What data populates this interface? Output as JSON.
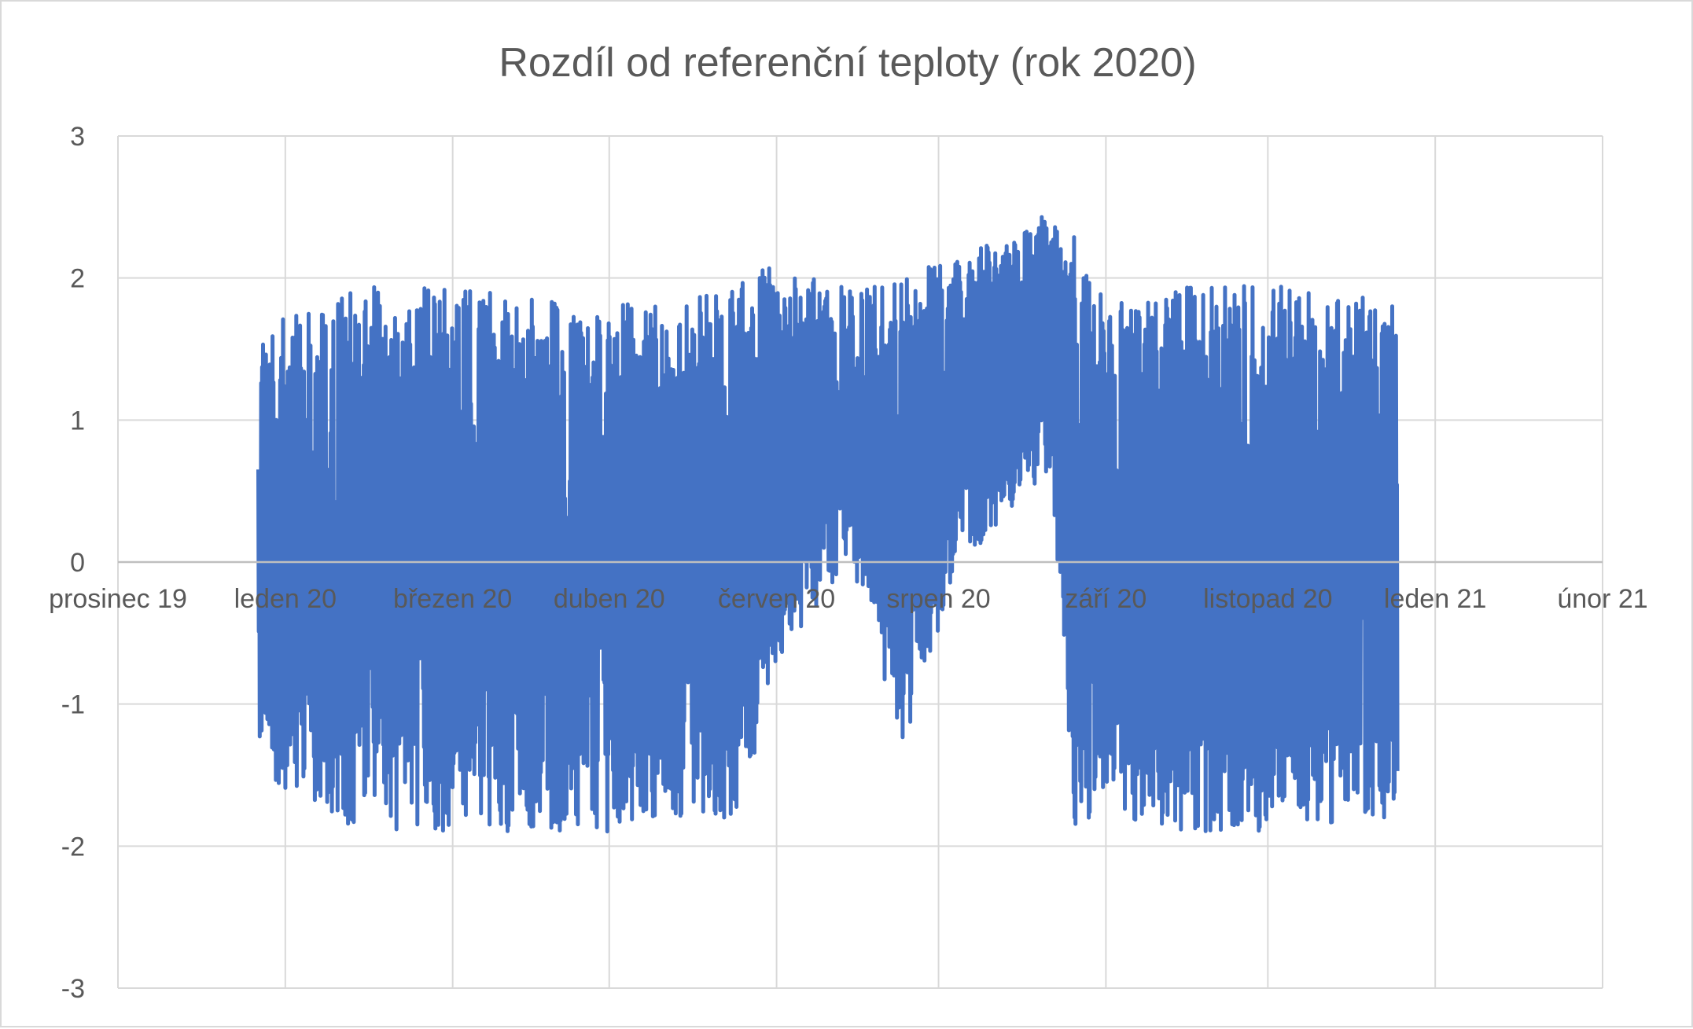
{
  "chart_data": {
    "type": "line",
    "title": "Rozdíl od referenční teploty (rok 2020)",
    "xlabel": "",
    "ylabel": "",
    "ylim": [
      -3,
      3
    ],
    "y_ticks": [
      "3",
      "2",
      "1",
      "0",
      "-1",
      "-2",
      "-3"
    ],
    "x_ticks": [
      {
        "label": "prosinec 19",
        "date": "2019-12-01"
      },
      {
        "label": "leden 20",
        "date": "2020-01-01"
      },
      {
        "label": "březen 20",
        "date": "2020-02-01"
      },
      {
        "label": "duben 20",
        "date": "2020-03-01"
      },
      {
        "label": "červen 20",
        "date": "2020-04-01"
      },
      {
        "label": "srpen 20",
        "date": "2020-05-01"
      },
      {
        "label": "září 20",
        "date": "2020-06-01"
      },
      {
        "label": "listopad 20",
        "date": "2020-07-01"
      },
      {
        "label": "leden 21",
        "date": "2020-08-01"
      },
      {
        "label": "únor 21",
        "date": "2020-09-01"
      }
    ],
    "xlim": [
      "2019-12-01",
      "2020-09-01"
    ],
    "grid": true,
    "legend": "none",
    "series_color": "#4472C4",
    "series": [
      {
        "x_start": "2019-12-27",
        "x_end": "2020-07-25",
        "envelope_x": [
          "2019-12-27",
          "2020-01-15",
          "2020-02-15",
          "2020-03-05",
          "2020-03-15",
          "2020-03-25",
          "2020-04-01",
          "2020-04-15",
          "2020-04-25",
          "2020-05-05",
          "2020-05-15",
          "2020-05-22",
          "2020-05-26",
          "2020-06-01",
          "2020-06-15",
          "2020-07-01",
          "2020-07-25"
        ],
        "envelope_max": [
          1.7,
          1.95,
          1.9,
          1.9,
          1.8,
          2.15,
          2.05,
          1.95,
          2.0,
          2.2,
          2.3,
          2.48,
          2.3,
          1.85,
          1.95,
          1.95,
          1.85
        ],
        "envelope_min": [
          -1.5,
          -1.9,
          -1.9,
          -1.9,
          -1.8,
          -1.8,
          -0.7,
          -0.05,
          -1.38,
          0.0,
          0.35,
          0.6,
          -1.9,
          -1.8,
          -1.9,
          -1.9,
          -1.8
        ]
      }
    ]
  }
}
